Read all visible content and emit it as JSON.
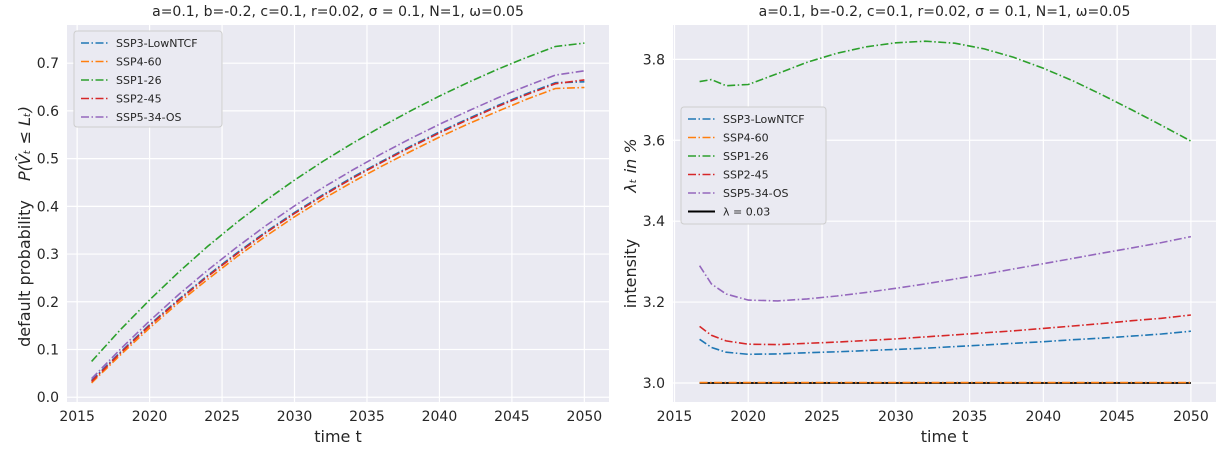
{
  "chart_data": [
    {
      "type": "line",
      "title": "a=0.1, b=-0.2, c=0.1, r=0.02, σ = 0.1, N=1, ω=0.05",
      "xlabel": "time t",
      "ylabel_main": "default probability",
      "ylabel_math": "P(V̂ₜ ≤ Lₜ)",
      "xlim": [
        2014.3,
        2051.7
      ],
      "ylim": [
        -0.01,
        0.78
      ],
      "xticks": [
        "2015",
        "2020",
        "2025",
        "2030",
        "2035",
        "2040",
        "2045",
        "2050"
      ],
      "yticks": [
        "0.0",
        "0.1",
        "0.2",
        "0.3",
        "0.4",
        "0.5",
        "0.6",
        "0.7"
      ],
      "grid": true,
      "legend_position": "top-left",
      "x": [
        2016,
        2018,
        2020,
        2022,
        2024,
        2026,
        2028,
        2030,
        2032,
        2034,
        2036,
        2038,
        2040,
        2042,
        2044,
        2046,
        2048,
        2050
      ],
      "series": [
        {
          "name": "SSP3-LowNTCF",
          "color": "#1f77b4",
          "values": [
            0.035,
            0.095,
            0.152,
            0.205,
            0.255,
            0.302,
            0.346,
            0.387,
            0.425,
            0.461,
            0.494,
            0.526,
            0.556,
            0.584,
            0.611,
            0.636,
            0.659,
            0.661
          ]
        },
        {
          "name": "SSP4-60",
          "color": "#ff7f0e",
          "values": [
            0.03,
            0.089,
            0.145,
            0.198,
            0.247,
            0.294,
            0.337,
            0.378,
            0.416,
            0.451,
            0.484,
            0.515,
            0.545,
            0.573,
            0.599,
            0.624,
            0.647,
            0.649
          ]
        },
        {
          "name": "SSP1-26",
          "color": "#2ca02c",
          "values": [
            0.075,
            0.142,
            0.204,
            0.262,
            0.316,
            0.366,
            0.412,
            0.455,
            0.495,
            0.532,
            0.567,
            0.6,
            0.631,
            0.66,
            0.687,
            0.712,
            0.735,
            0.742
          ]
        },
        {
          "name": "SSP2-45",
          "color": "#d62728",
          "values": [
            0.033,
            0.093,
            0.15,
            0.203,
            0.253,
            0.3,
            0.344,
            0.385,
            0.423,
            0.459,
            0.492,
            0.524,
            0.554,
            0.582,
            0.609,
            0.634,
            0.657,
            0.665
          ]
        },
        {
          "name": "SSP5-34-OS",
          "color": "#9467bd",
          "values": [
            0.039,
            0.101,
            0.16,
            0.215,
            0.266,
            0.314,
            0.359,
            0.401,
            0.44,
            0.476,
            0.51,
            0.542,
            0.572,
            0.6,
            0.627,
            0.652,
            0.675,
            0.684
          ]
        }
      ]
    },
    {
      "type": "line",
      "title": "a=0.1, b=-0.2, c=0.1, r=0.02, σ = 0.1, N=1, ω=0.05",
      "xlabel": "time t",
      "ylabel_main": "intensity",
      "ylabel_math": "λₜ in %",
      "xlim": [
        2014.9,
        2051.7
      ],
      "ylim": [
        2.953,
        3.885
      ],
      "xticks": [
        "2015",
        "2020",
        "2025",
        "2030",
        "2035",
        "2040",
        "2045",
        "2050"
      ],
      "yticks": [
        "3.0",
        "3.2",
        "3.4",
        "3.6",
        "3.8"
      ],
      "grid": true,
      "legend_position": "center-left",
      "x": [
        2016.7,
        2017.5,
        2018.5,
        2020,
        2022,
        2024,
        2026,
        2028,
        2030,
        2032,
        2034,
        2036,
        2038,
        2040,
        2042,
        2044,
        2046,
        2048,
        2050
      ],
      "series": [
        {
          "name": "SSP3-LowNTCF",
          "color": "#1f77b4",
          "values": [
            3.108,
            3.088,
            3.076,
            3.071,
            3.072,
            3.075,
            3.077,
            3.08,
            3.083,
            3.086,
            3.09,
            3.094,
            3.098,
            3.102,
            3.107,
            3.111,
            3.116,
            3.121,
            3.128
          ]
        },
        {
          "name": "SSP4-60",
          "color": "#ff7f0e",
          "values": [
            3.001,
            3.001,
            3.001,
            3.001,
            3.001,
            3.001,
            3.001,
            3.001,
            3.001,
            3.001,
            3.001,
            3.001,
            3.001,
            3.001,
            3.001,
            3.001,
            3.001,
            3.001,
            3.001
          ]
        },
        {
          "name": "SSP1-26",
          "color": "#2ca02c",
          "values": [
            3.745,
            3.75,
            3.735,
            3.738,
            3.765,
            3.793,
            3.815,
            3.831,
            3.841,
            3.845,
            3.84,
            3.826,
            3.805,
            3.778,
            3.747,
            3.712,
            3.675,
            3.637,
            3.598
          ]
        },
        {
          "name": "SSP2-45",
          "color": "#d62728",
          "values": [
            3.14,
            3.118,
            3.104,
            3.096,
            3.095,
            3.098,
            3.101,
            3.105,
            3.109,
            3.114,
            3.119,
            3.124,
            3.129,
            3.135,
            3.141,
            3.147,
            3.154,
            3.16,
            3.168
          ]
        },
        {
          "name": "SSP5-34-OS",
          "color": "#9467bd",
          "values": [
            3.29,
            3.245,
            3.22,
            3.205,
            3.203,
            3.208,
            3.215,
            3.224,
            3.234,
            3.245,
            3.257,
            3.269,
            3.282,
            3.295,
            3.308,
            3.321,
            3.334,
            3.347,
            3.362
          ]
        }
      ],
      "reference_line": {
        "name": "λ = 0.03",
        "color": "#000000",
        "value": 3.0,
        "x": [
          2016.7,
          2050
        ]
      }
    }
  ]
}
